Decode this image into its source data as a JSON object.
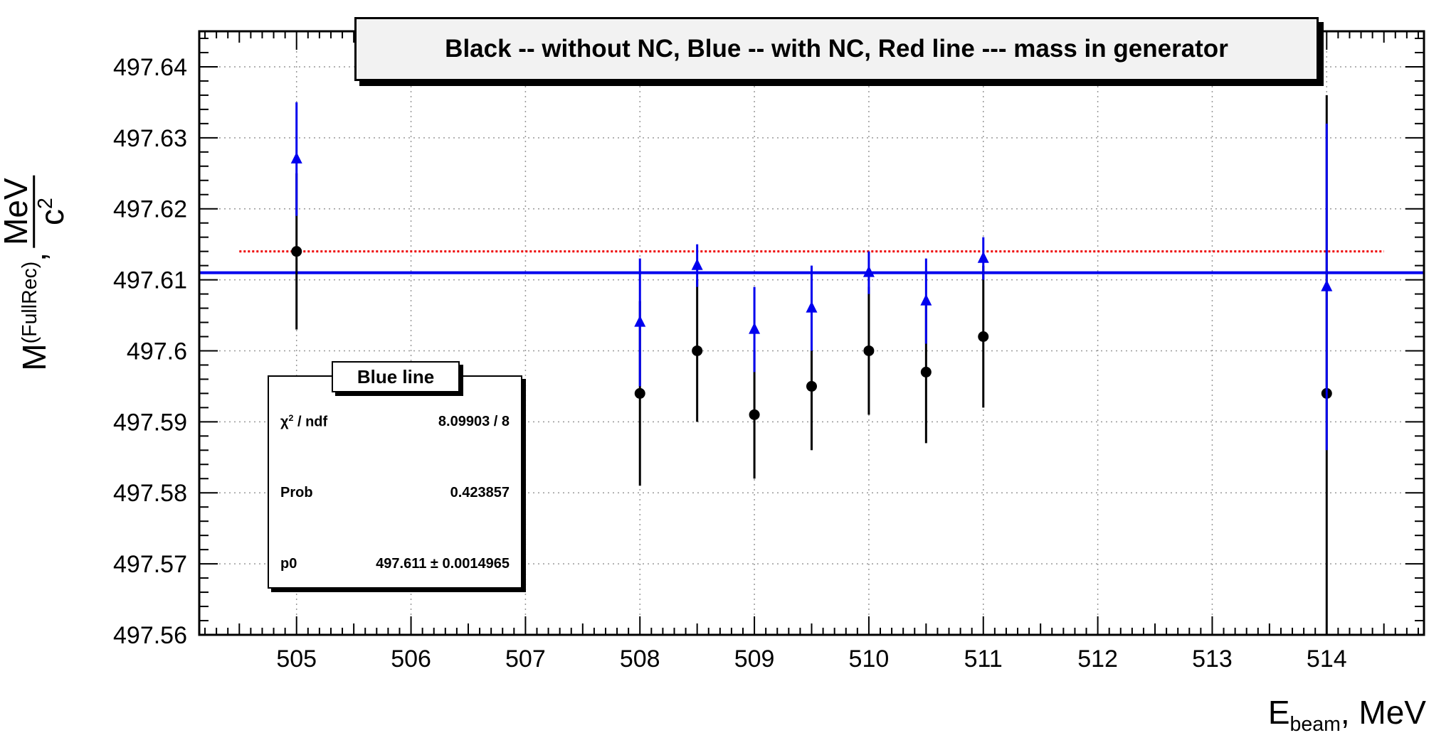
{
  "legend_text": "Black -- without NC, Blue -- with NC, Red line --- mass in generator",
  "axes": {
    "y_label_main": "M",
    "y_label_sup": "(FullRec)",
    "y_label_sep": ",",
    "y_label_unit_num": "MeV",
    "y_label_unit_den": "c",
    "y_label_unit_den_sup": "2",
    "x_label_main": "E",
    "x_label_sub": "beam",
    "x_label_unit": ", MeV"
  },
  "stats": {
    "title": "Blue line",
    "rows": [
      {
        "label": "χ",
        "label_sup": "2",
        "label_rest": " / ndf",
        "value": "8.09903 / 8"
      },
      {
        "label": "Prob",
        "label_sup": "",
        "label_rest": "",
        "value": "0.423857"
      },
      {
        "label": "p0",
        "label_sup": "",
        "label_rest": "",
        "value": "497.611 ± 0.0014965"
      }
    ]
  },
  "colors": {
    "black_series": "#000000",
    "blue_series": "#0000ee",
    "generator_line": "#ee0000",
    "fit_line": "#0000ee"
  },
  "chart_data": {
    "type": "scatter",
    "xlim": [
      504.15,
      514.85
    ],
    "ylim": [
      497.56,
      497.645
    ],
    "x_ticks": [
      505,
      506,
      507,
      508,
      509,
      510,
      511,
      512,
      513,
      514
    ],
    "y_ticks": [
      497.56,
      497.57,
      497.58,
      497.59,
      497.6,
      497.61,
      497.62,
      497.63,
      497.64
    ],
    "y_tick_labels": [
      "497.56",
      "497.57",
      "497.58",
      "497.59",
      "497.6",
      "497.61",
      "497.62",
      "497.63",
      "497.64"
    ],
    "grid": true,
    "series": [
      {
        "marker": "circle",
        "color": "#000000",
        "x": [
          505,
          508,
          508.5,
          509,
          509.5,
          510,
          510.5,
          511,
          514
        ],
        "y": [
          497.614,
          497.594,
          497.6,
          497.591,
          497.595,
          497.6,
          497.597,
          497.602,
          497.594
        ],
        "err": [
          0.011,
          0.013,
          0.01,
          0.009,
          0.009,
          0.009,
          0.01,
          0.01,
          0.042
        ]
      },
      {
        "marker": "triangle",
        "color": "#0000ee",
        "x": [
          505,
          508,
          508.5,
          509,
          509.5,
          510,
          510.5,
          511,
          514
        ],
        "y": [
          497.627,
          497.604,
          497.612,
          497.603,
          497.606,
          497.611,
          497.607,
          497.613,
          497.609
        ],
        "err": [
          0.008,
          0.009,
          0.003,
          0.006,
          0.006,
          0.003,
          0.006,
          0.003,
          0.023
        ]
      }
    ],
    "generator_line": {
      "y": 497.614,
      "x_range": [
        504.5,
        514.5
      ],
      "style": "dotted"
    },
    "fit_line": {
      "y": 497.611,
      "x_range": [
        504.15,
        514.85
      ],
      "style": "solid"
    }
  }
}
